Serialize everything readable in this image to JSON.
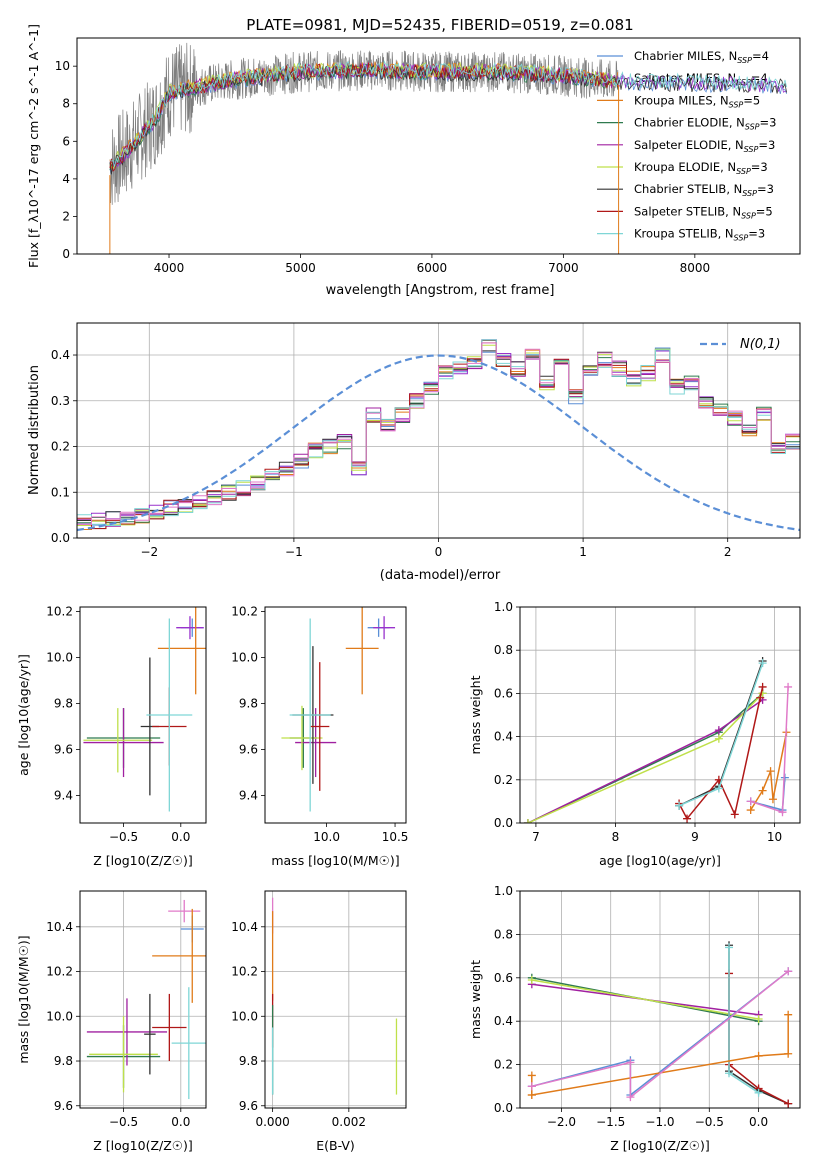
{
  "colors": {
    "c_miles": "#5b8fd6",
    "s_miles": "#9932cc",
    "k_miles": "#e07b1a",
    "c_elodie": "#2f7a4f",
    "s_elodie": "#a020a0",
    "k_elodie": "#bfe04a",
    "c_stelib": "#333333",
    "s_stelib": "#b01818",
    "k_stelib": "#7fd6d6",
    "normal": "#5b8fd6",
    "pink": "#e07ac9",
    "spectrum": "#7f7f7f"
  },
  "legend_labels": [
    {
      "base": "Chabrier MILES, N",
      "sub": "SSP",
      "tail": "=4",
      "color": "c_miles"
    },
    {
      "base": "Salpeter MILES, N",
      "sub": "SSP",
      "tail": "=4",
      "color": "s_miles"
    },
    {
      "base": "Kroupa MILES, N",
      "sub": "SSP",
      "tail": "=5",
      "color": "k_miles"
    },
    {
      "base": "Chabrier ELODIE, N",
      "sub": "SSP",
      "tail": "=3",
      "color": "c_elodie"
    },
    {
      "base": "Salpeter ELODIE, N",
      "sub": "SSP",
      "tail": "=3",
      "color": "s_elodie"
    },
    {
      "base": "Kroupa ELODIE, N",
      "sub": "SSP",
      "tail": "=3",
      "color": "k_elodie"
    },
    {
      "base": "Chabrier STELIB, N",
      "sub": "SSP",
      "tail": "=3",
      "color": "c_stelib"
    },
    {
      "base": "Salpeter STELIB, N",
      "sub": "SSP",
      "tail": "=5",
      "color": "s_stelib"
    },
    {
      "base": "Kroupa STELIB, N",
      "sub": "SSP",
      "tail": "=3",
      "color": "k_stelib"
    }
  ],
  "chart_data": [
    {
      "id": "spectrum",
      "type": "line",
      "title": "PLATE=0981, MJD=52435, FIBERID=0519, z=0.081",
      "xlabel": "wavelength [Angstrom, rest frame]",
      "ylabel": "Flux [f_λ10^-17 erg cm^-2 s^-1 A^-1]",
      "xlim": [
        3300,
        8800
      ],
      "ylim": [
        0,
        11.5
      ],
      "xticks": [
        4000,
        5000,
        6000,
        7000,
        8000
      ],
      "yticks": [
        0,
        2,
        4,
        6,
        8,
        10
      ],
      "data_range": [
        3550,
        7420
      ],
      "continuum_points": [
        [
          3550,
          4.6
        ],
        [
          3700,
          5.6
        ],
        [
          3900,
          7.2
        ],
        [
          4000,
          8.6
        ],
        [
          4500,
          9.3
        ],
        [
          5000,
          9.7
        ],
        [
          5500,
          9.8
        ],
        [
          6000,
          9.7
        ],
        [
          6500,
          9.7
        ],
        [
          7000,
          9.5
        ],
        [
          7400,
          9.2
        ],
        [
          8600,
          9.0
        ]
      ],
      "legend_position": "upper right"
    },
    {
      "id": "residuals",
      "type": "line",
      "xlabel": "(data-model)/error",
      "ylabel": "Normed distribution",
      "xlim": [
        -2.5,
        2.5
      ],
      "ylim": [
        0,
        0.47
      ],
      "xticks": [
        -2,
        -1,
        0,
        1,
        2
      ],
      "xticklabels": [
        "−2",
        "−1",
        "0",
        "1",
        "2"
      ],
      "yticks": [
        0.0,
        0.1,
        0.2,
        0.3,
        0.4
      ],
      "yticklabels": [
        "0.0",
        "0.1",
        "0.2",
        "0.3",
        "0.4"
      ],
      "grid": true,
      "legend_label": "N(0,1)",
      "legend_position": "upper right",
      "bin_width": 0.1,
      "hist_base": [
        0.035,
        0.038,
        0.042,
        0.045,
        0.05,
        0.058,
        0.065,
        0.07,
        0.08,
        0.09,
        0.1,
        0.108,
        0.12,
        0.135,
        0.15,
        0.17,
        0.19,
        0.2,
        0.21,
        0.15,
        0.27,
        0.25,
        0.27,
        0.3,
        0.33,
        0.36,
        0.37,
        0.38,
        0.42,
        0.39,
        0.37,
        0.4,
        0.34,
        0.38,
        0.31,
        0.36,
        0.39,
        0.37,
        0.35,
        0.36,
        0.4,
        0.33,
        0.34,
        0.3,
        0.28,
        0.26,
        0.24,
        0.27,
        0.2,
        0.21,
        0.19,
        0.2,
        0.16,
        0.15,
        0.14,
        0.12,
        0.13,
        0.1,
        0.09,
        0.07,
        0.08,
        0.065,
        0.06,
        0.05,
        0.045,
        0.05,
        0.045,
        0.042,
        0.04,
        0.038,
        0.035
      ],
      "hist_start": -2.5
    },
    {
      "id": "Z-age",
      "type": "scatter",
      "xlabel": "Z [log10(Z/Z☉)]",
      "ylabel": "age  [log10(age/yr)]",
      "xlim": [
        -0.88,
        0.22
      ],
      "ylim": [
        9.28,
        10.22
      ],
      "xticks": [
        -0.5,
        0.0
      ],
      "xticklabels": [
        "−0.5",
        "0.0"
      ],
      "yticks": [
        9.4,
        9.6,
        9.8,
        10.0,
        10.2
      ],
      "yticklabels": [
        "9.4",
        "9.6",
        "9.8",
        "10.0",
        "10.2"
      ],
      "points": [
        {
          "s": "c_miles",
          "x": 0.1,
          "xe": 0.1,
          "y": 10.13,
          "ye": 0.04
        },
        {
          "s": "s_miles",
          "x": 0.08,
          "xe": 0.12,
          "y": 10.13,
          "ye": 0.05
        },
        {
          "s": "k_miles",
          "x": 0.13,
          "xe": 0.33,
          "y": 10.04,
          "ye": 0.2
        },
        {
          "s": "c_elodie",
          "x": -0.5,
          "xe": 0.32,
          "y": 9.65,
          "ye": 0.13
        },
        {
          "s": "s_elodie",
          "x": -0.5,
          "xe": 0.35,
          "y": 9.63,
          "ye": 0.15
        },
        {
          "s": "k_elodie",
          "x": -0.55,
          "xe": 0.3,
          "y": 9.64,
          "ye": 0.14
        },
        {
          "s": "c_stelib",
          "x": -0.27,
          "xe": 0.08,
          "y": 9.7,
          "ye": 0.3
        },
        {
          "s": "s_stelib",
          "x": -0.1,
          "xe": 0.15,
          "y": 9.7,
          "ye": 0.17
        },
        {
          "s": "k_stelib",
          "x": -0.1,
          "xe": 0.2,
          "y": 9.75,
          "ye": 0.42
        }
      ]
    },
    {
      "id": "mass-age",
      "type": "scatter",
      "xlabel": "mass [log10(M/M☉)]",
      "ylabel": "",
      "xlim": [
        9.55,
        10.58
      ],
      "ylim": [
        9.28,
        10.22
      ],
      "xticks": [
        10.0,
        10.5
      ],
      "xticklabels": [
        "10.0",
        "10.5"
      ],
      "yticks": [
        9.4,
        9.6,
        9.8,
        10.0,
        10.2
      ],
      "yticklabels": [
        "9.4",
        "9.6",
        "9.8",
        "10.0",
        "10.2"
      ],
      "points": [
        {
          "s": "c_miles",
          "x": 10.38,
          "xe": 0.08,
          "y": 10.13,
          "ye": 0.04
        },
        {
          "s": "s_miles",
          "x": 10.42,
          "xe": 0.08,
          "y": 10.13,
          "ye": 0.05
        },
        {
          "s": "k_miles",
          "x": 10.26,
          "xe": 0.12,
          "y": 10.04,
          "ye": 0.2
        },
        {
          "s": "c_elodie",
          "x": 9.83,
          "xe": 0.1,
          "y": 9.65,
          "ye": 0.13
        },
        {
          "s": "s_elodie",
          "x": 9.92,
          "xe": 0.15,
          "y": 9.63,
          "ye": 0.15
        },
        {
          "s": "k_elodie",
          "x": 9.82,
          "xe": 0.15,
          "y": 9.65,
          "ye": 0.14
        },
        {
          "s": "c_stelib",
          "x": 9.9,
          "xe": 0.15,
          "y": 9.75,
          "ye": 0.3
        },
        {
          "s": "s_stelib",
          "x": 9.95,
          "xe": 0.07,
          "y": 9.7,
          "ye": 0.28
        },
        {
          "s": "k_stelib",
          "x": 9.88,
          "xe": 0.15,
          "y": 9.75,
          "ye": 0.42
        }
      ]
    },
    {
      "id": "age-weight",
      "type": "line",
      "xlabel": "age  [log10(age/yr)]",
      "ylabel": "mass weight",
      "xlim": [
        6.8,
        10.32
      ],
      "ylim": [
        0,
        1.0
      ],
      "xticks": [
        7,
        8,
        9,
        10
      ],
      "yticks": [
        0.0,
        0.2,
        0.4,
        0.6,
        0.8,
        1.0
      ],
      "yticklabels": [
        "0.0",
        "0.2",
        "0.4",
        "0.6",
        "0.8",
        "1.0"
      ],
      "grid": true,
      "series": [
        {
          "s": "c_elodie",
          "points": [
            [
              6.9,
              0.0
            ],
            [
              9.3,
              0.42
            ],
            [
              9.85,
              0.6
            ]
          ]
        },
        {
          "s": "s_elodie",
          "points": [
            [
              6.9,
              0.0
            ],
            [
              9.3,
              0.43
            ],
            [
              9.85,
              0.57
            ]
          ]
        },
        {
          "s": "k_elodie",
          "points": [
            [
              6.9,
              0.0
            ],
            [
              9.3,
              0.39
            ],
            [
              9.85,
              0.6
            ]
          ]
        },
        {
          "s": "c_stelib",
          "points": [
            [
              8.8,
              0.08
            ],
            [
              9.3,
              0.17
            ],
            [
              9.85,
              0.75
            ]
          ]
        },
        {
          "s": "s_stelib",
          "points": [
            [
              8.8,
              0.09
            ],
            [
              8.9,
              0.02
            ],
            [
              9.3,
              0.2
            ],
            [
              9.5,
              0.04
            ],
            [
              9.82,
              0.58
            ],
            [
              9.85,
              0.63
            ]
          ]
        },
        {
          "s": "k_stelib",
          "points": [
            [
              8.8,
              0.08
            ],
            [
              9.3,
              0.16
            ],
            [
              9.85,
              0.74
            ]
          ]
        },
        {
          "s": "c_miles",
          "points": [
            [
              9.7,
              0.1
            ],
            [
              10.1,
              0.06
            ],
            [
              10.13,
              0.21
            ]
          ]
        },
        {
          "s": "k_miles",
          "points": [
            [
              9.7,
              0.06
            ],
            [
              9.85,
              0.15
            ],
            [
              9.95,
              0.24
            ],
            [
              9.98,
              0.11
            ],
            [
              10.15,
              0.42
            ]
          ]
        },
        {
          "s": "pink",
          "points": [
            [
              9.7,
              0.1
            ],
            [
              10.1,
              0.05
            ],
            [
              10.17,
              0.63
            ]
          ]
        }
      ]
    },
    {
      "id": "Z-mass",
      "type": "scatter",
      "xlabel": "Z [log10(Z/Z☉)]",
      "ylabel": "mass [log10(M/M☉)]",
      "xlim": [
        -0.88,
        0.22
      ],
      "ylim": [
        9.59,
        10.56
      ],
      "xticks": [
        -0.5,
        0.0
      ],
      "xticklabels": [
        "−0.5",
        "0.0"
      ],
      "yticks": [
        9.6,
        9.8,
        10.0,
        10.2,
        10.4
      ],
      "yticklabels": [
        "9.6",
        "9.8",
        "10.0",
        "10.2",
        "10.4"
      ],
      "grid": true,
      "points": [
        {
          "s": "c_miles",
          "x": 0.1,
          "xe": 0.1,
          "y": 10.39,
          "ye": 0.06
        },
        {
          "s": "pink",
          "x": 0.03,
          "xe": 0.14,
          "y": 10.47,
          "ye": 0.05
        },
        {
          "s": "k_miles",
          "x": 0.1,
          "xe": 0.35,
          "y": 10.27,
          "ye": 0.21
        },
        {
          "s": "c_elodie",
          "x": -0.5,
          "xe": 0.32,
          "y": 9.82,
          "ye": 0.14
        },
        {
          "s": "s_elodie",
          "x": -0.47,
          "xe": 0.35,
          "y": 9.93,
          "ye": 0.15
        },
        {
          "s": "k_elodie",
          "x": -0.5,
          "xe": 0.3,
          "y": 9.83,
          "ye": 0.17
        },
        {
          "s": "c_stelib",
          "x": -0.27,
          "xe": 0.05,
          "y": 9.92,
          "ye": 0.18
        },
        {
          "s": "s_stelib",
          "x": -0.1,
          "xe": 0.15,
          "y": 9.95,
          "ye": 0.15
        },
        {
          "s": "k_stelib",
          "x": 0.07,
          "xe": 0.15,
          "y": 9.88,
          "ye": 0.25
        }
      ]
    },
    {
      "id": "ebv-mass",
      "type": "scatter",
      "xlabel": "E(B-V)",
      "ylabel": "",
      "xlim": [
        -0.0002,
        0.0035
      ],
      "ylim": [
        9.59,
        10.56
      ],
      "xticks": [
        0.0,
        0.002
      ],
      "xticklabels": [
        "0.000",
        "0.002"
      ],
      "yticks": [
        9.6,
        9.8,
        10.0,
        10.2,
        10.4
      ],
      "yticklabels": [
        "9.6",
        "9.8",
        "10.0",
        "10.2",
        "10.4"
      ],
      "grid": true,
      "points": [
        {
          "s": "pink",
          "x": 0.0,
          "xe": 0.0,
          "y": 10.45,
          "ye": 0.08
        },
        {
          "s": "k_miles",
          "x": 0.0,
          "xe": 0.0,
          "y": 10.27,
          "ye": 0.2
        },
        {
          "s": "s_stelib",
          "x": 0.0,
          "xe": 0.0,
          "y": 9.98,
          "ye": 0.12
        },
        {
          "s": "c_elodie",
          "x": 0.0,
          "xe": 0.0,
          "y": 9.85,
          "ye": 0.2
        },
        {
          "s": "k_stelib",
          "x": 0.0,
          "xe": 0.0,
          "y": 9.8,
          "ye": 0.15
        },
        {
          "s": "k_elodie",
          "x": 0.00325,
          "xe": 0.0,
          "y": 9.82,
          "ye": 0.17
        }
      ]
    },
    {
      "id": "Z-weight",
      "type": "line",
      "xlabel": "Z [log10(Z/Z☉)]",
      "ylabel": "mass weight",
      "xlim": [
        -2.42,
        0.42
      ],
      "ylim": [
        0,
        1.0
      ],
      "xticks": [
        -2.0,
        -1.5,
        -1.0,
        -0.5,
        0.0
      ],
      "xticklabels": [
        "−2.0",
        "−1.5",
        "−1.0",
        "−0.5",
        "0.0"
      ],
      "yticks": [
        0.0,
        0.2,
        0.4,
        0.6,
        0.8,
        1.0
      ],
      "yticklabels": [
        "0.0",
        "0.2",
        "0.4",
        "0.6",
        "0.8",
        "1.0"
      ],
      "grid": true,
      "series": [
        {
          "s": "c_elodie",
          "points": [
            [
              -2.3,
              0.6
            ],
            [
              0.0,
              0.4
            ]
          ]
        },
        {
          "s": "s_elodie",
          "points": [
            [
              -2.3,
              0.57
            ],
            [
              0.0,
              0.43
            ]
          ]
        },
        {
          "s": "k_elodie",
          "points": [
            [
              -2.3,
              0.59
            ],
            [
              0.0,
              0.41
            ]
          ]
        },
        {
          "s": "c_stelib",
          "points": [
            [
              -0.3,
              0.75
            ],
            [
              -0.3,
              0.17
            ],
            [
              0.0,
              0.08
            ],
            [
              0.3,
              0.02
            ]
          ]
        },
        {
          "s": "s_stelib",
          "points": [
            [
              -0.3,
              0.62
            ],
            [
              -0.3,
              0.2
            ],
            [
              0.0,
              0.09
            ],
            [
              0.3,
              0.02
            ]
          ]
        },
        {
          "s": "k_stelib",
          "points": [
            [
              -0.3,
              0.74
            ],
            [
              -0.3,
              0.16
            ],
            [
              0.0,
              0.07
            ]
          ]
        },
        {
          "s": "c_miles",
          "points": [
            [
              -2.3,
              0.1
            ],
            [
              -1.3,
              0.22
            ],
            [
              -1.3,
              0.06
            ],
            [
              0.3,
              0.63
            ]
          ]
        },
        {
          "s": "k_miles",
          "points": [
            [
              -2.3,
              0.06
            ],
            [
              -2.3,
              0.15
            ],
            [
              -2.3,
              0.06
            ],
            [
              0.0,
              0.24
            ],
            [
              0.3,
              0.25
            ],
            [
              0.3,
              0.43
            ]
          ]
        },
        {
          "s": "pink",
          "points": [
            [
              -2.3,
              0.1
            ],
            [
              -1.3,
              0.21
            ],
            [
              -1.3,
              0.05
            ],
            [
              0.3,
              0.63
            ]
          ]
        }
      ]
    }
  ]
}
